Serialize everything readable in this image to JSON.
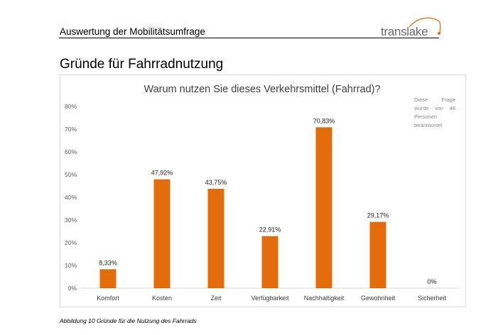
{
  "header": {
    "title": "Auswertung der Mobilitätsumfrage",
    "logo_text": "translake",
    "logo_accent_color": "#e36c0a"
  },
  "section_title": "Gründe für Fahrradnutzung",
  "note": "Diese Frage wurde von 48 Personen beantwortet",
  "caption": "Abbildung 10 Gründe für die Nutzung des Fahrrads",
  "chart_data": {
    "type": "bar",
    "title": "Warum nutzen Sie dieses Verkehrsmittel (Fahrrad)?",
    "categories": [
      "Komfort",
      "Kosten",
      "Zeit",
      "Verfügbarkeit",
      "Nachhaltigkeit",
      "Gewohnheit",
      "Sicherheit"
    ],
    "values": [
      8.33,
      47.92,
      43.75,
      22.91,
      70.83,
      29.17,
      0
    ],
    "data_labels": [
      "8,33%",
      "47,92%",
      "43,75%",
      "22,91%",
      "70,83%",
      "29,17%",
      "0%"
    ],
    "ylim": [
      0,
      80
    ],
    "yticks": [
      "0%",
      "10%",
      "20%",
      "30%",
      "40%",
      "50%",
      "60%",
      "70%",
      "80%"
    ],
    "grid": false,
    "bar_color": "#e36c0a"
  }
}
